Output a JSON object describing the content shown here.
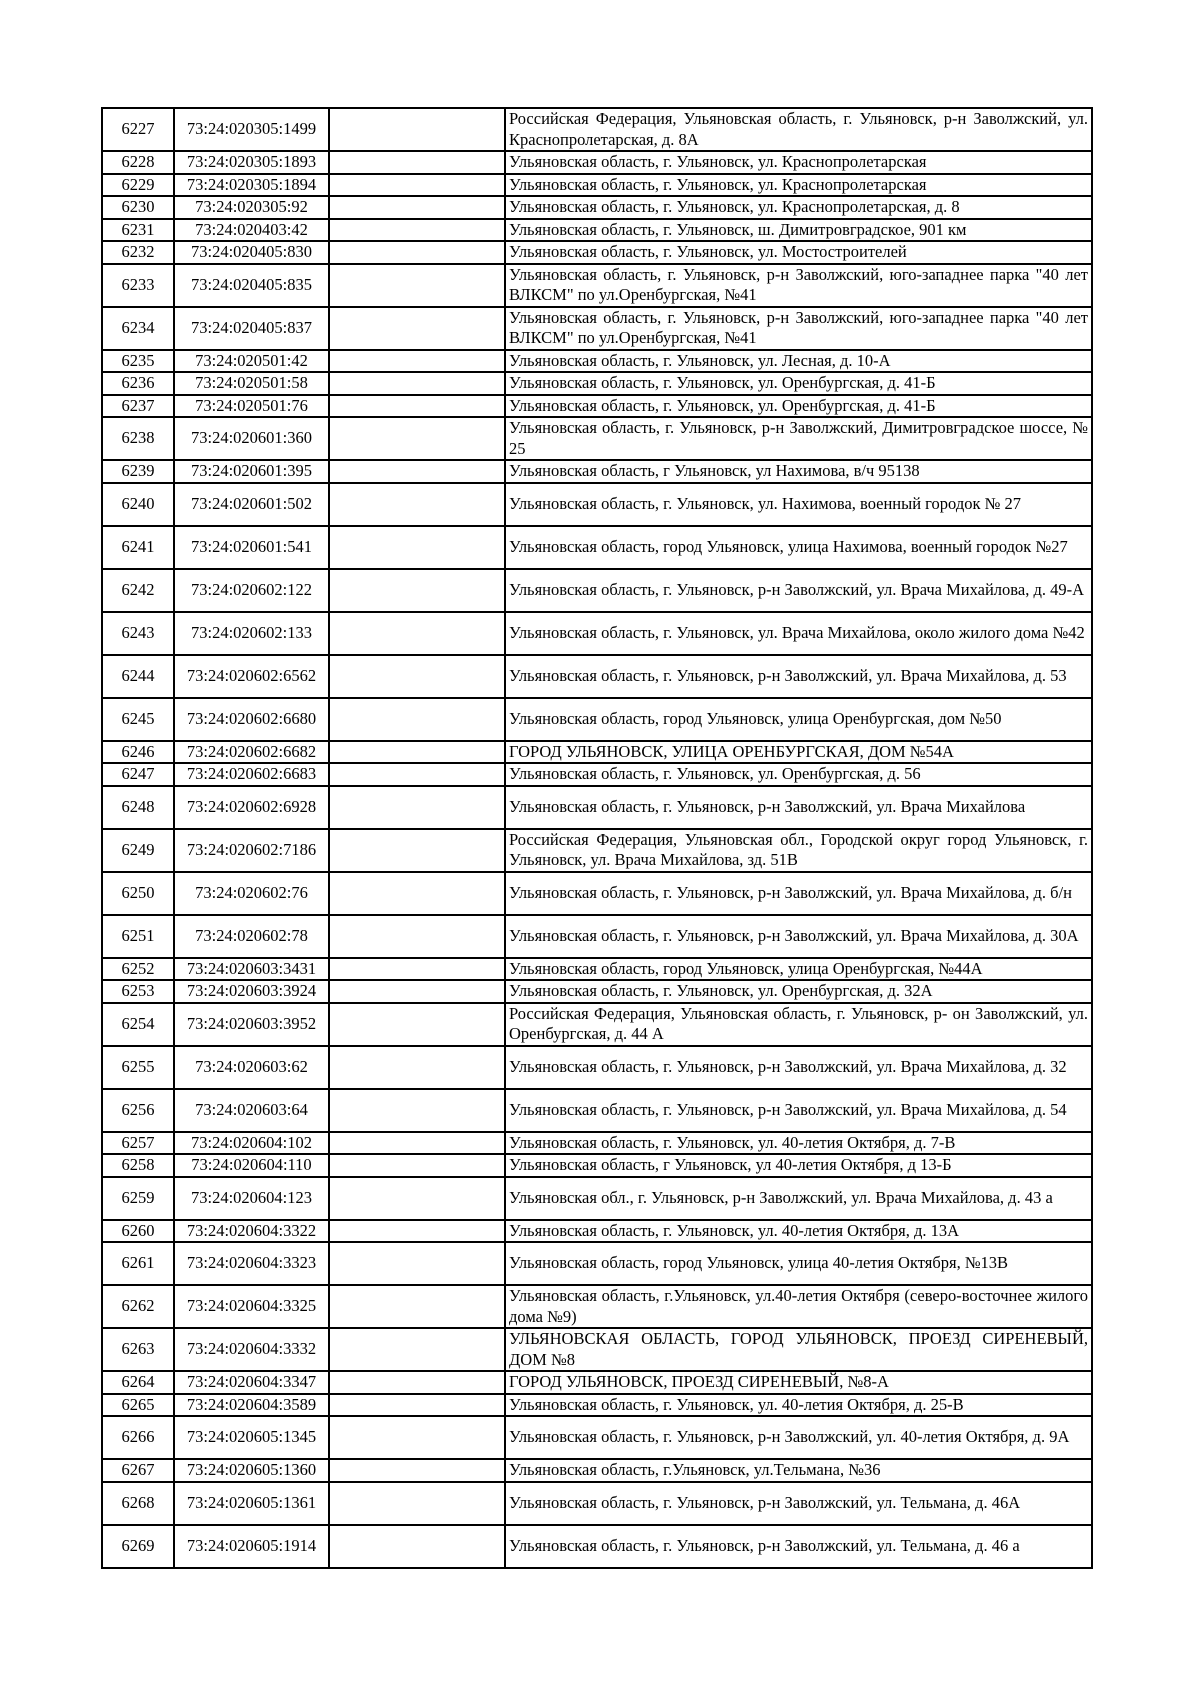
{
  "document": {
    "kind": "cadastral-address-register-table-page",
    "table": {
      "rows": [
        {
          "num": "6227",
          "cadastral": "73:24:020305:1499",
          "address": "Российская Федерация, Ульяновская область, г. Ульяновск, р-н Заволжский, ул. Краснопролетарская, д. 8А",
          "tall": true
        },
        {
          "num": "6228",
          "cadastral": "73:24:020305:1893",
          "address": "Ульяновская область, г. Ульяновск, ул. Краснопролетарская",
          "tall": false
        },
        {
          "num": "6229",
          "cadastral": "73:24:020305:1894",
          "address": "Ульяновская область, г. Ульяновск, ул. Краснопролетарская",
          "tall": false
        },
        {
          "num": "6230",
          "cadastral": "73:24:020305:92",
          "address": "Ульяновская область, г. Ульяновск, ул. Краснопролетарская, д. 8",
          "tall": false
        },
        {
          "num": "6231",
          "cadastral": "73:24:020403:42",
          "address": "Ульяновская область, г. Ульяновск, ш. Димитровградское, 901 км",
          "tall": false
        },
        {
          "num": "6232",
          "cadastral": "73:24:020405:830",
          "address": "Ульяновская область, г. Ульяновск, ул. Мостостроителей",
          "tall": false
        },
        {
          "num": "6233",
          "cadastral": "73:24:020405:835",
          "address": "Ульяновская область, г. Ульяновск, р-н Заволжский, юго-западнее парка \"40 лет ВЛКСМ\" по ул.Оренбургская, №41",
          "tall": true
        },
        {
          "num": "6234",
          "cadastral": "73:24:020405:837",
          "address": "Ульяновская область, г. Ульяновск, р-н Заволжский, юго-западнее парка \"40 лет ВЛКСМ\" по ул.Оренбургская, №41",
          "tall": true
        },
        {
          "num": "6235",
          "cadastral": "73:24:020501:42",
          "address": "Ульяновская область, г. Ульяновск, ул. Лесная, д. 10-А",
          "tall": false
        },
        {
          "num": "6236",
          "cadastral": "73:24:020501:58",
          "address": "Ульяновская область, г. Ульяновск, ул. Оренбургская, д. 41-Б",
          "tall": false
        },
        {
          "num": "6237",
          "cadastral": "73:24:020501:76",
          "address": "Ульяновская область, г. Ульяновск, ул. Оренбургская, д. 41-Б",
          "tall": false
        },
        {
          "num": "6238",
          "cadastral": "73:24:020601:360",
          "address": "Ульяновская область, г. Ульяновск, р-н Заволжский, Димитровградское шоссе, № 25",
          "tall": true
        },
        {
          "num": "6239",
          "cadastral": "73:24:020601:395",
          "address": "Ульяновская область, г Ульяновск, ул Нахимова, в/ч 95138",
          "tall": false
        },
        {
          "num": "6240",
          "cadastral": "73:24:020601:502",
          "address": "Ульяновская область, г. Ульяновск, ул. Нахимова, военный городок № 27",
          "tall": true
        },
        {
          "num": "6241",
          "cadastral": "73:24:020601:541",
          "address": "Ульяновская область, город Ульяновск, улица Нахимова, военный городок №27",
          "tall": true
        },
        {
          "num": "6242",
          "cadastral": "73:24:020602:122",
          "address": "Ульяновская область, г. Ульяновск, р-н Заволжский, ул. Врача Михайлова, д. 49-А",
          "tall": true
        },
        {
          "num": "6243",
          "cadastral": "73:24:020602:133",
          "address": "Ульяновская область, г. Ульяновск, ул. Врача Михайлова, около жилого дома №42",
          "tall": true
        },
        {
          "num": "6244",
          "cadastral": "73:24:020602:6562",
          "address": "Ульяновская область, г. Ульяновск, р-н Заволжский, ул. Врача Михайлова, д. 53",
          "tall": true
        },
        {
          "num": "6245",
          "cadastral": "73:24:020602:6680",
          "address": "Ульяновская область, город Ульяновск, улица Оренбургская, дом №50",
          "tall": true
        },
        {
          "num": "6246",
          "cadastral": "73:24:020602:6682",
          "address": "ГОРОД УЛЬЯНОВСК, УЛИЦА ОРЕНБУРГСКАЯ, ДОМ №54А",
          "tall": false
        },
        {
          "num": "6247",
          "cadastral": "73:24:020602:6683",
          "address": "Ульяновская область, г. Ульяновск, ул. Оренбургская, д. 56",
          "tall": false
        },
        {
          "num": "6248",
          "cadastral": "73:24:020602:6928",
          "address": "Ульяновская область, г. Ульяновск, р-н Заволжский, ул. Врача Михайлова",
          "tall": true
        },
        {
          "num": "6249",
          "cadastral": "73:24:020602:7186",
          "address": "Российская Федерация, Ульяновская обл., Городской округ город Ульяновск, г. Ульяновск, ул. Врача Михайлова, зд. 51В",
          "tall": true
        },
        {
          "num": "6250",
          "cadastral": "73:24:020602:76",
          "address": "Ульяновская область, г. Ульяновск, р-н Заволжский, ул. Врача Михайлова, д. б/н",
          "tall": true
        },
        {
          "num": "6251",
          "cadastral": "73:24:020602:78",
          "address": "Ульяновская область, г. Ульяновск, р-н Заволжский, ул. Врача Михайлова, д. 30А",
          "tall": true
        },
        {
          "num": "6252",
          "cadastral": "73:24:020603:3431",
          "address": "Ульяновская область, город Ульяновск, улица Оренбургская, №44А",
          "tall": false
        },
        {
          "num": "6253",
          "cadastral": "73:24:020603:3924",
          "address": "Ульяновская область, г. Ульяновск, ул. Оренбургская, д. 32А",
          "tall": false
        },
        {
          "num": "6254",
          "cadastral": "73:24:020603:3952",
          "address": "Российская Федерация, Ульяновская область, г. Ульяновск, р- он Заволжский, ул. Оренбургская, д. 44 А",
          "tall": true
        },
        {
          "num": "6255",
          "cadastral": "73:24:020603:62",
          "address": "Ульяновская область, г. Ульяновск, р-н Заволжский, ул. Врача Михайлова, д. 32",
          "tall": true
        },
        {
          "num": "6256",
          "cadastral": "73:24:020603:64",
          "address": "Ульяновская область, г. Ульяновск, р-н Заволжский, ул. Врача Михайлова, д. 54",
          "tall": true
        },
        {
          "num": "6257",
          "cadastral": "73:24:020604:102",
          "address": "Ульяновская область, г. Ульяновск, ул. 40-летия Октября, д. 7-В",
          "tall": false
        },
        {
          "num": "6258",
          "cadastral": "73:24:020604:110",
          "address": "Ульяновская область, г Ульяновск, ул 40-летия Октября, д 13-Б",
          "tall": false
        },
        {
          "num": "6259",
          "cadastral": "73:24:020604:123",
          "address": "Ульяновская обл., г. Ульяновск, р-н Заволжский, ул. Врача Михайлова, д. 43 а",
          "tall": true
        },
        {
          "num": "6260",
          "cadastral": "73:24:020604:3322",
          "address": "Ульяновская область, г. Ульяновск, ул. 40-летия Октября, д. 13А",
          "tall": false
        },
        {
          "num": "6261",
          "cadastral": "73:24:020604:3323",
          "address": "Ульяновская область, город Ульяновск, улица 40-летия Октября, №13В",
          "tall": true
        },
        {
          "num": "6262",
          "cadastral": "73:24:020604:3325",
          "address": "Ульяновская область, г.Ульяновск, ул.40-летия Октября (северо-восточнее жилого дома №9)",
          "tall": true
        },
        {
          "num": "6263",
          "cadastral": "73:24:020604:3332",
          "address": "УЛЬЯНОВСКАЯ ОБЛАСТЬ, ГОРОД УЛЬЯНОВСК, ПРОЕЗД СИРЕНЕВЫЙ, ДОМ №8",
          "tall": true
        },
        {
          "num": "6264",
          "cadastral": "73:24:020604:3347",
          "address": "ГОРОД УЛЬЯНОВСК, ПРОЕЗД СИРЕНЕВЫЙ, №8-А",
          "tall": false
        },
        {
          "num": "6265",
          "cadastral": "73:24:020604:3589",
          "address": "Ульяновская область, г. Ульяновск, ул. 40-летия Октября, д. 25-В",
          "tall": false
        },
        {
          "num": "6266",
          "cadastral": "73:24:020605:1345",
          "address": "Ульяновская область, г. Ульяновск, р-н Заволжский, ул. 40-летия Октября, д. 9А",
          "tall": true
        },
        {
          "num": "6267",
          "cadastral": "73:24:020605:1360",
          "address": "Ульяновская область, г.Ульяновск, ул.Тельмана, №36",
          "tall": false
        },
        {
          "num": "6268",
          "cadastral": "73:24:020605:1361",
          "address": "Ульяновская область, г. Ульяновск, р-н Заволжский, ул. Тельмана, д. 46А",
          "tall": true
        },
        {
          "num": "6269",
          "cadastral": "73:24:020605:1914",
          "address": "Ульяновская область, г. Ульяновск, р-н Заволжский, ул. Тельмана, д. 46 а",
          "tall": true
        }
      ]
    }
  }
}
